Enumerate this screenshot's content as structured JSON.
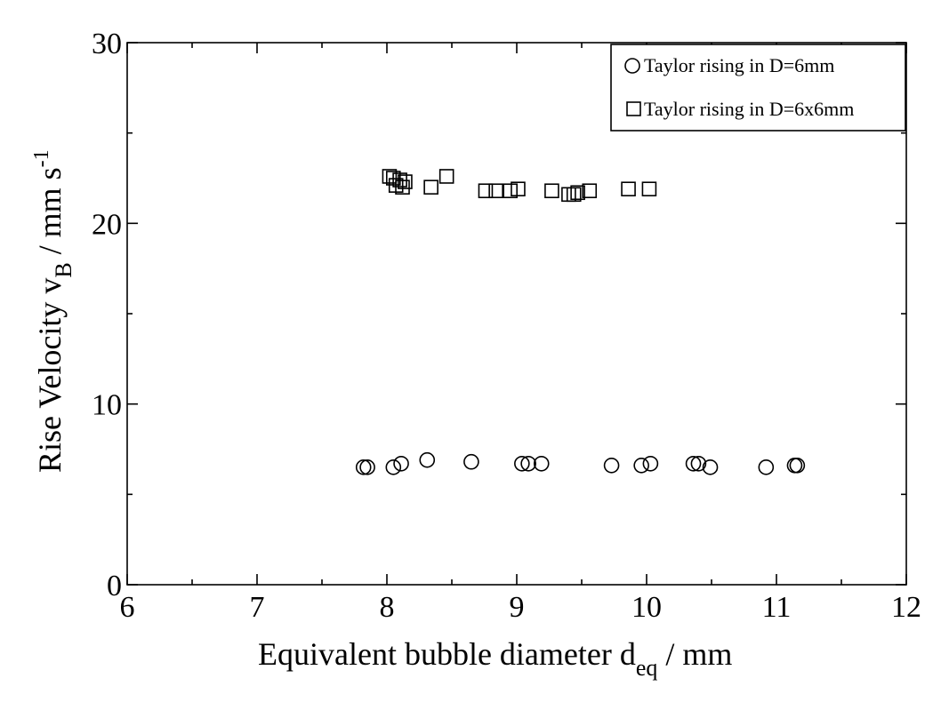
{
  "chart_data": {
    "type": "scatter",
    "xlim": [
      6,
      12
    ],
    "ylim": [
      0,
      30
    ],
    "x_ticks": [
      6,
      7,
      8,
      9,
      10,
      11,
      12
    ],
    "y_ticks": [
      0,
      10,
      20,
      30
    ],
    "xlabel": {
      "main": "Equivalent bubble diameter d",
      "sub": "eq",
      "unit": " / mm"
    },
    "ylabel": {
      "main": "Rise Velocity v",
      "sub": "B",
      "unit": "  / mm s",
      "sup": "-1"
    },
    "legend_position": "top-right",
    "series": [
      {
        "name": "Taylor rising in D=6mm",
        "marker": "circle",
        "color": "#000000",
        "points": [
          [
            7.82,
            6.5
          ],
          [
            7.85,
            6.5
          ],
          [
            8.05,
            6.5
          ],
          [
            8.11,
            6.7
          ],
          [
            8.31,
            6.9
          ],
          [
            8.65,
            6.8
          ],
          [
            9.04,
            6.7
          ],
          [
            9.09,
            6.7
          ],
          [
            9.19,
            6.7
          ],
          [
            9.73,
            6.6
          ],
          [
            9.96,
            6.6
          ],
          [
            10.03,
            6.7
          ],
          [
            10.36,
            6.7
          ],
          [
            10.4,
            6.7
          ],
          [
            10.49,
            6.5
          ],
          [
            10.92,
            6.5
          ],
          [
            11.14,
            6.6
          ],
          [
            11.16,
            6.6
          ]
        ]
      },
      {
        "name": "Taylor rising in D=6x6mm",
        "marker": "square",
        "color": "#000000",
        "points": [
          [
            8.02,
            22.6
          ],
          [
            8.05,
            22.5
          ],
          [
            8.07,
            22.1
          ],
          [
            8.1,
            22.4
          ],
          [
            8.12,
            22.0
          ],
          [
            8.14,
            22.3
          ],
          [
            8.34,
            22.0
          ],
          [
            8.46,
            22.6
          ],
          [
            8.76,
            21.8
          ],
          [
            8.84,
            21.8
          ],
          [
            8.95,
            21.8
          ],
          [
            9.01,
            21.9
          ],
          [
            9.27,
            21.8
          ],
          [
            9.4,
            21.6
          ],
          [
            9.44,
            21.6
          ],
          [
            9.47,
            21.7
          ],
          [
            9.56,
            21.8
          ],
          [
            9.86,
            21.9
          ],
          [
            10.02,
            21.9
          ]
        ]
      }
    ]
  }
}
